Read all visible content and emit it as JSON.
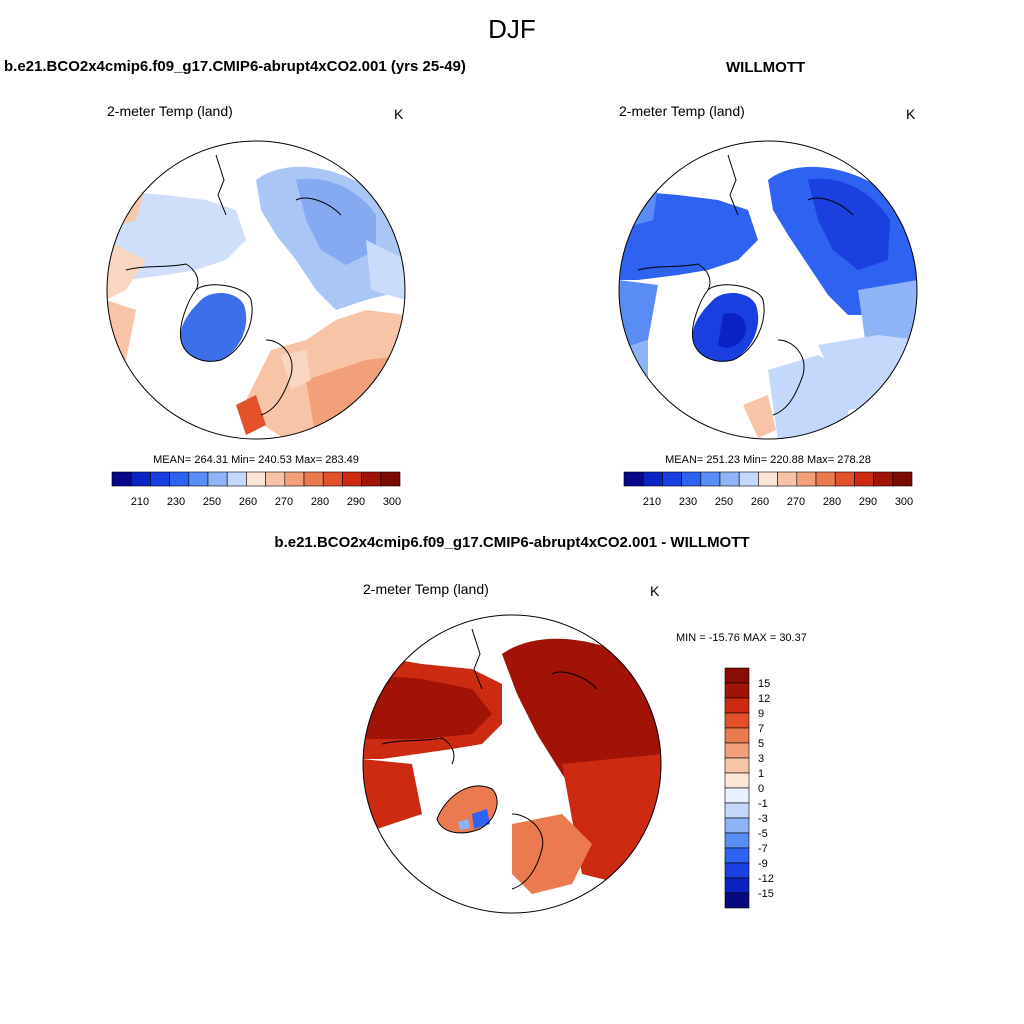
{
  "figure": {
    "title": "DJF"
  },
  "panels": {
    "model": {
      "title": "b.e21.BCO2x4cmip6.f09_g17.CMIP6-abrupt4xCO2.001 (yrs 25-49)",
      "subtitle": "2-meter Temp (land)",
      "units": "K",
      "stats": "MEAN= 264.31  Min= 240.53  Max= 283.49"
    },
    "obs": {
      "title": "WILLMOTT",
      "subtitle": "2-meter Temp (land)",
      "units": "K",
      "stats": "MEAN= 251.23  Min= 220.88  Max= 278.28"
    },
    "diff": {
      "title": "b.e21.BCO2x4cmip6.f09_g17.CMIP6-abrupt4xCO2.001 - WILLMOTT",
      "subtitle": "2-meter Temp (land)",
      "units": "K",
      "stats": "MIN = -15.76 MAX =  30.37"
    }
  },
  "colorbars": {
    "absolute": {
      "colors": [
        "#08088a",
        "#0b22c4",
        "#1a3fe0",
        "#2e62f0",
        "#5a8cf5",
        "#8fb3f7",
        "#c3d8fa",
        "#fbe6d8",
        "#f7c4a8",
        "#f2a07a",
        "#eb7a50",
        "#e3512b",
        "#cc2b12",
        "#a11306",
        "#7a0b03"
      ],
      "labels": [
        "210",
        "230",
        "250",
        "260",
        "270",
        "280",
        "290",
        "300"
      ]
    },
    "difference": {
      "colors": [
        "#080880",
        "#0b22c0",
        "#1a40e0",
        "#2e62f0",
        "#5a8cf5",
        "#8fb3f7",
        "#c3d8fa",
        "#e8f0fd",
        "#fbe6d8",
        "#f7c4a8",
        "#f2a07a",
        "#eb7a50",
        "#e3512b",
        "#cc2b12",
        "#a11306",
        "#8a0c04"
      ],
      "labels": [
        "15",
        "12",
        "9",
        "7",
        "5",
        "3",
        "1",
        "0",
        "-1",
        "-3",
        "-5",
        "-7",
        "-9",
        "-12",
        "-15"
      ]
    }
  }
}
